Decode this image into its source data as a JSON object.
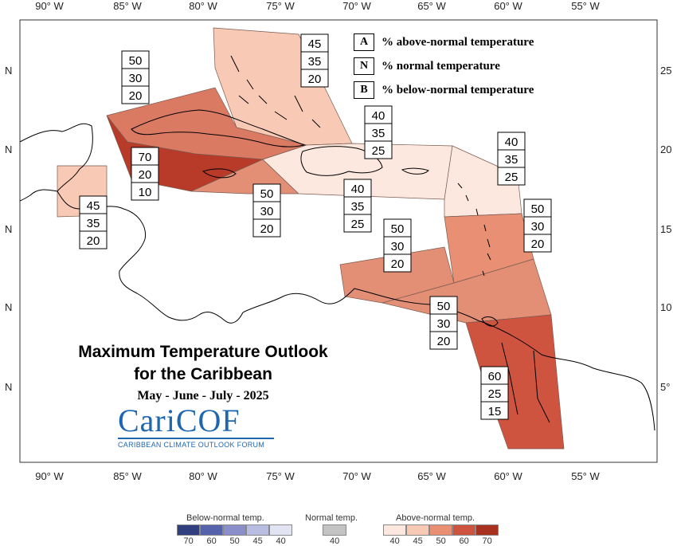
{
  "title": {
    "line1": "Maximum Temperature Outlook",
    "line2": "for the Caribbean",
    "period": "May - June - July - 2025"
  },
  "logo": {
    "name": "CariCOF",
    "subtitle": "CARIBBEAN CLIMATE OUTLOOK FORUM"
  },
  "key": [
    {
      "letter": "A",
      "text": "% above-normal temperature"
    },
    {
      "letter": "N",
      "text": "% normal temperature"
    },
    {
      "letter": "B",
      "text": "% below-normal temperature"
    }
  ],
  "axes": {
    "lon_ticks": [
      "90° W",
      "85° W",
      "80° W",
      "75° W",
      "70° W",
      "65° W",
      "60° W",
      "55° W"
    ],
    "lat_ticks_left": [
      "N",
      "N",
      "N",
      "N",
      "N"
    ],
    "lat_ticks_right": [
      "25",
      "20",
      "15",
      "10",
      "5°"
    ]
  },
  "regions": [
    {
      "id": "bahamas",
      "A": 45,
      "N": 35,
      "B": 20,
      "color": "#f8c9b5"
    },
    {
      "id": "cuba",
      "A": 50,
      "N": 30,
      "B": 20,
      "color": "#db7a63"
    },
    {
      "id": "cayman-jamaica",
      "A": 70,
      "N": 20,
      "B": 10,
      "color": "#b83a28"
    },
    {
      "id": "jamaica-south",
      "A": 50,
      "N": 30,
      "B": 20,
      "color": "#e28f76"
    },
    {
      "id": "belize",
      "A": 45,
      "N": 35,
      "B": 20,
      "color": "#f8c9b5"
    },
    {
      "id": "hispaniola-north",
      "A": 40,
      "N": 35,
      "B": 25,
      "color": "#fde8df"
    },
    {
      "id": "hispaniola-pr",
      "A": 40,
      "N": 35,
      "B": 25,
      "color": "#fde8df"
    },
    {
      "id": "leewards",
      "A": 40,
      "N": 35,
      "B": 25,
      "color": "#fde8df"
    },
    {
      "id": "windwards",
      "A": 50,
      "N": 30,
      "B": 20,
      "color": "#e88f74"
    },
    {
      "id": "abc-islands",
      "A": 50,
      "N": 30,
      "B": 20,
      "color": "#e28f76"
    },
    {
      "id": "trinidad",
      "A": 50,
      "N": 30,
      "B": 20,
      "color": "#e28f76"
    },
    {
      "id": "guianas",
      "A": 60,
      "N": 25,
      "B": 15,
      "color": "#cf5440"
    }
  ],
  "legend": {
    "below": {
      "title": "Below-normal temp.",
      "colors": [
        "#2f3f7f",
        "#5563ad",
        "#8a8fcb",
        "#b9bde2",
        "#e2e4f3"
      ],
      "labels": [
        "70",
        "60",
        "50",
        "45",
        "40"
      ]
    },
    "normal": {
      "title": "Normal temp.",
      "color": "#c4c4c4",
      "label": "40"
    },
    "above": {
      "title": "Above-normal temp.",
      "colors": [
        "#fde8df",
        "#f8c9b5",
        "#e88f74",
        "#cf5440",
        "#a8321f"
      ],
      "labels": [
        "40",
        "45",
        "50",
        "60",
        "70"
      ]
    }
  }
}
